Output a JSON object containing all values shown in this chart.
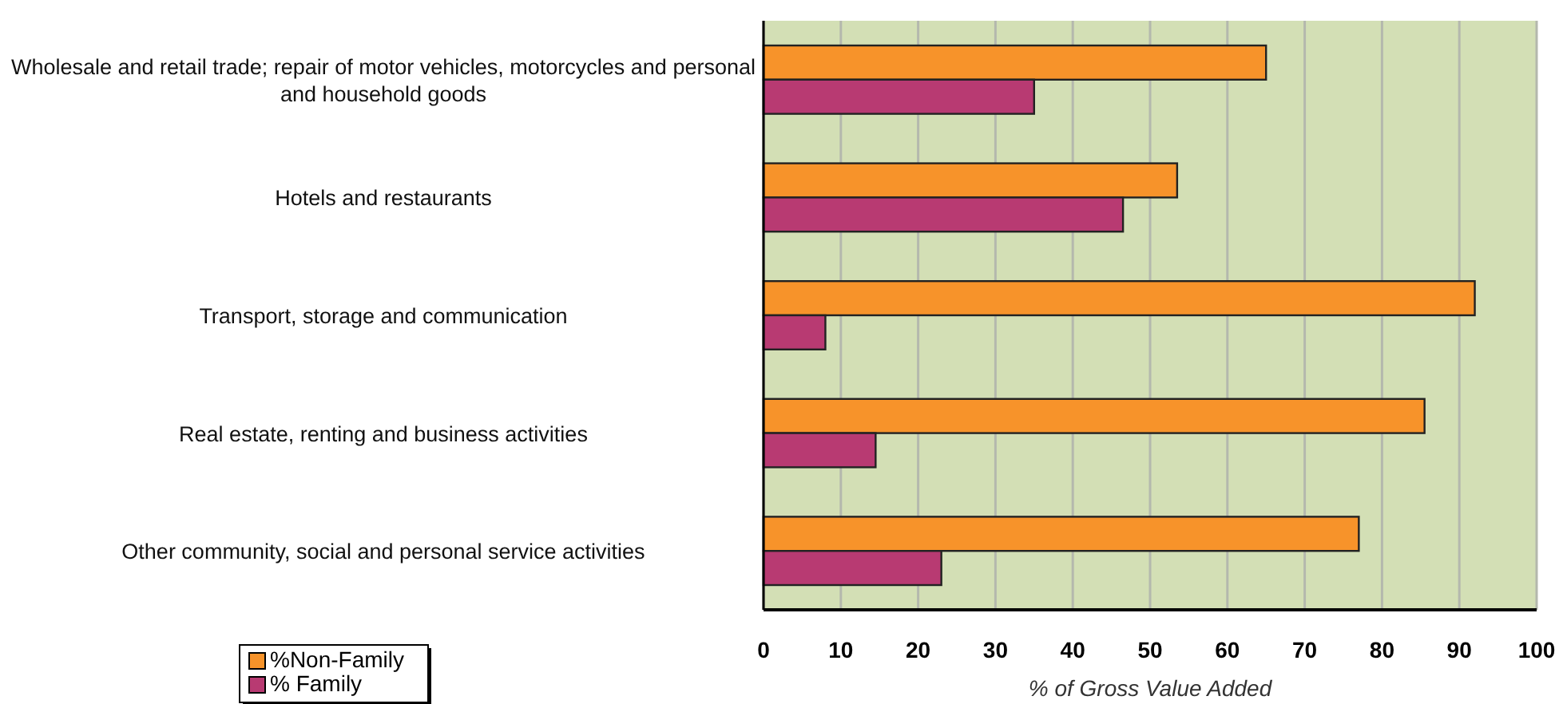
{
  "chart_data": {
    "type": "bar",
    "orientation": "horizontal",
    "xlabel": "% of Gross Value Added",
    "categories": [
      "Wholesale and retail trade; repair of motor vehicles, motorcycles and personal and household goods",
      "Hotels and restaurants",
      "Transport, storage and communication",
      "Real estate, renting and business activities",
      "Other community, social  and personal service activities"
    ],
    "series": [
      {
        "name": "%Non-Family",
        "color": "#f7932a",
        "values": [
          65,
          53.5,
          92,
          85.5,
          77
        ]
      },
      {
        "name": "% Family",
        "color": "#b83a72",
        "values": [
          35,
          46.5,
          8,
          14.5,
          23
        ]
      }
    ],
    "xlim": [
      0,
      100
    ],
    "xticks": [
      0,
      10,
      20,
      30,
      40,
      50,
      60,
      70,
      80,
      90,
      100
    ],
    "grid": "x",
    "legend": "bottom left"
  }
}
